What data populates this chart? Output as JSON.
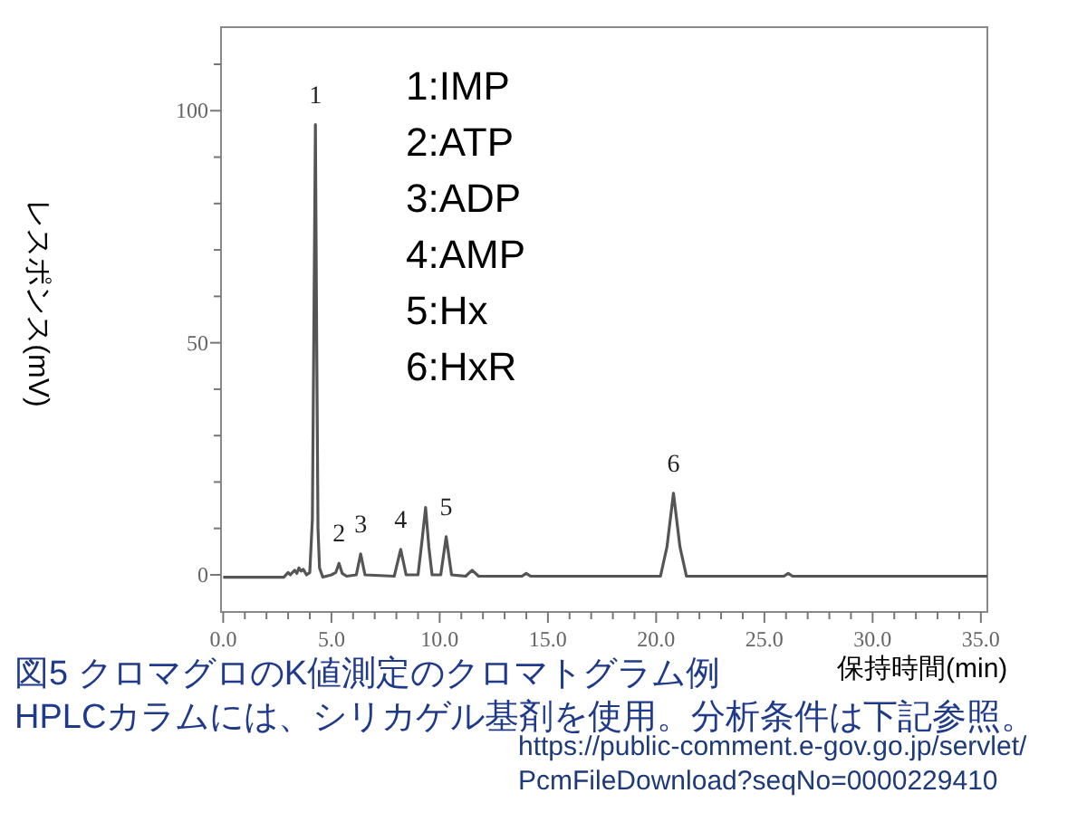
{
  "chart_data": {
    "type": "line",
    "title": "図5  クロマグロのK値測定のクロマトグラム例",
    "subtitle": "HPLCカラムには、シリカゲル基剤を使用。分析条件は下記参照。",
    "xlabel": "保持時間(min)",
    "ylabel": "レスポンス(mV)",
    "series": [
      {
        "color": "#555555",
        "x": [
          0,
          2.8,
          3.0,
          3.1,
          3.3,
          3.4,
          3.5,
          3.6,
          3.7,
          3.85,
          4.0,
          4.12,
          4.2,
          4.26,
          4.32,
          4.38,
          4.45,
          4.6,
          5.0,
          5.2,
          5.35,
          5.5,
          5.7,
          6.15,
          6.35,
          6.55,
          7.9,
          8.2,
          8.45,
          9.0,
          9.2,
          9.35,
          9.5,
          9.65,
          10.05,
          10.3,
          10.55,
          11.2,
          11.5,
          11.8,
          13.8,
          14.0,
          14.2,
          20.2,
          20.5,
          20.8,
          21.1,
          21.4,
          25.9,
          26.1,
          26.3,
          35.3
        ],
        "values": [
          -0.5,
          -0.5,
          0.5,
          0,
          1,
          0.3,
          1.5,
          0.8,
          1.2,
          0,
          0.5,
          12,
          60,
          97,
          50,
          10,
          1.5,
          -0.5,
          0,
          0.5,
          2.5,
          0.3,
          -0.3,
          0,
          4.5,
          0,
          -0.3,
          5.5,
          0,
          0,
          8,
          14.5,
          6,
          0,
          0,
          8.2,
          0,
          -0.3,
          1,
          -0.3,
          -0.3,
          0.3,
          -0.3,
          -0.3,
          6,
          17.6,
          6,
          -0.3,
          -0.3,
          0.3,
          -0.3,
          -0.3
        ]
      }
    ],
    "xlim": [
      -0.1,
      35.3
    ],
    "ylim": [
      -8,
      118
    ],
    "xticks": [
      {
        "value": 0,
        "label": "0.0"
      },
      {
        "value": 1,
        "label": null
      },
      {
        "value": 2,
        "label": null
      },
      {
        "value": 3,
        "label": null
      },
      {
        "value": 4,
        "label": null
      },
      {
        "value": 5,
        "label": "5.0"
      },
      {
        "value": 6,
        "label": null
      },
      {
        "value": 7,
        "label": null
      },
      {
        "value": 8,
        "label": null
      },
      {
        "value": 9,
        "label": null
      },
      {
        "value": 10,
        "label": "10.0"
      },
      {
        "value": 11,
        "label": null
      },
      {
        "value": 12,
        "label": null
      },
      {
        "value": 13,
        "label": null
      },
      {
        "value": 14,
        "label": null
      },
      {
        "value": 15,
        "label": "15.0"
      },
      {
        "value": 16,
        "label": null
      },
      {
        "value": 17,
        "label": null
      },
      {
        "value": 18,
        "label": null
      },
      {
        "value": 19,
        "label": null
      },
      {
        "value": 20,
        "label": "20.0"
      },
      {
        "value": 21,
        "label": null
      },
      {
        "value": 22,
        "label": null
      },
      {
        "value": 23,
        "label": null
      },
      {
        "value": 24,
        "label": null
      },
      {
        "value": 25,
        "label": "25.0"
      },
      {
        "value": 26,
        "label": null
      },
      {
        "value": 27,
        "label": null
      },
      {
        "value": 28,
        "label": null
      },
      {
        "value": 29,
        "label": null
      },
      {
        "value": 30,
        "label": "30.0"
      },
      {
        "value": 31,
        "label": null
      },
      {
        "value": 32,
        "label": null
      },
      {
        "value": 33,
        "label": null
      },
      {
        "value": 34,
        "label": null
      },
      {
        "value": 35,
        "label": "35.0"
      }
    ],
    "yticks": [
      0,
      {
        "value": 10,
        "label": null
      },
      {
        "value": 20,
        "label": null
      },
      {
        "value": 30,
        "label": null
      },
      {
        "value": 40,
        "label": null
      },
      50,
      {
        "value": 60,
        "label": null
      },
      {
        "value": 70,
        "label": null
      },
      {
        "value": 80,
        "label": null
      },
      {
        "value": 90,
        "label": null
      },
      100,
      {
        "value": 110,
        "label": null
      }
    ],
    "grid": false,
    "annotations": [
      {
        "text": "1",
        "x": 4.26,
        "y": 97
      },
      {
        "text": "2",
        "x": 5.35,
        "y": 2.5
      },
      {
        "text": "3",
        "x": 6.35,
        "y": 4.5
      },
      {
        "text": "4",
        "x": 8.2,
        "y": 5.5
      },
      {
        "text": "5",
        "x": 10.3,
        "y": 8.2
      },
      {
        "text": "6",
        "x": 20.8,
        "y": 17.6
      },
      "1:IMP",
      "2:ATP",
      "3:ADP",
      "4:AMP",
      "5:Hx",
      "6:HxR",
      "https://public-comment.e-gov.go.jp/servlet/PcmFileDownload?seqNo=0000229410"
    ]
  }
}
